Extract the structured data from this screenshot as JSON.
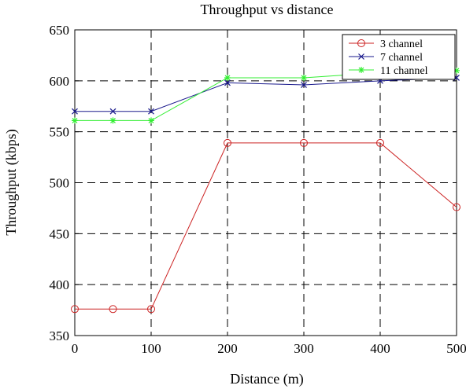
{
  "chart_data": {
    "type": "line",
    "title": "Throughput vs distance",
    "xlabel": "Distance (m)",
    "ylabel": "Throughput (kbps)",
    "xlim": [
      0,
      500
    ],
    "ylim": [
      350,
      650
    ],
    "xticks": [
      0,
      100,
      200,
      300,
      400,
      500
    ],
    "yticks": [
      350,
      400,
      450,
      500,
      550,
      600,
      650
    ],
    "grid": true,
    "legend_position": "top-right",
    "series": [
      {
        "name": "3 channel",
        "color": "#cc2222",
        "marker": "circle",
        "x": [
          0,
          50,
          100,
          200,
          300,
          400,
          500
        ],
        "y": [
          376,
          376,
          376,
          539,
          539,
          539,
          476
        ]
      },
      {
        "name": "7 channel",
        "color": "#1a1a8c",
        "marker": "x",
        "x": [
          0,
          50,
          100,
          200,
          300,
          400,
          500
        ],
        "y": [
          570,
          570,
          570,
          598,
          596,
          600,
          603
        ]
      },
      {
        "name": "11 channel",
        "color": "#33ee33",
        "marker": "star",
        "x": [
          0,
          50,
          100,
          200,
          300,
          400,
          500
        ],
        "y": [
          561,
          561,
          561,
          603,
          603,
          608,
          610
        ]
      }
    ]
  }
}
